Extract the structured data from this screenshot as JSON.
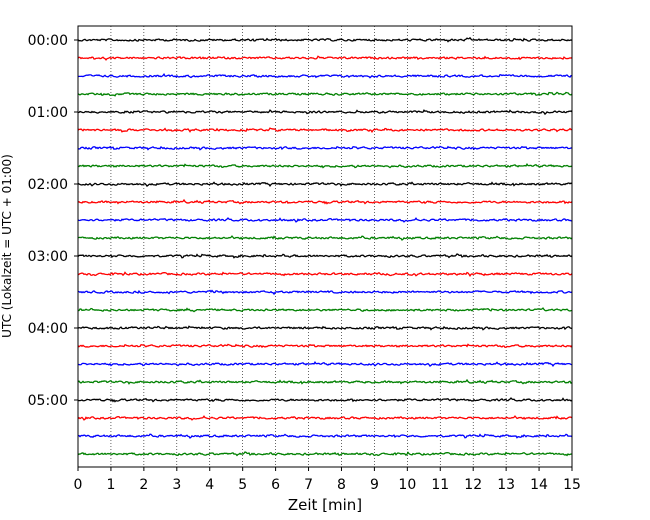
{
  "chart_data": {
    "type": "line",
    "title": "",
    "xlabel": "Zeit  [min]",
    "ylabel": "UTC (Lokalzeit = UTC + 01:00)",
    "xlim": [
      0,
      15
    ],
    "x_ticks": [
      "0",
      "1",
      "2",
      "3",
      "4",
      "5",
      "6",
      "7",
      "8",
      "9",
      "10",
      "11",
      "12",
      "13",
      "14",
      "15"
    ],
    "y_tick_labels": [
      "00:00",
      "01:00",
      "02:00",
      "03:00",
      "04:00",
      "05:00"
    ],
    "grid": "vertical dotted",
    "trace_interval_minutes": 15,
    "color_cycle": [
      "#000000",
      "#ff0000",
      "#0000ff",
      "#008000"
    ],
    "series": [
      {
        "start": "00:00",
        "color": "#000000"
      },
      {
        "start": "00:15",
        "color": "#ff0000"
      },
      {
        "start": "00:30",
        "color": "#0000ff"
      },
      {
        "start": "00:45",
        "color": "#008000"
      },
      {
        "start": "01:00",
        "color": "#000000"
      },
      {
        "start": "01:15",
        "color": "#ff0000"
      },
      {
        "start": "01:30",
        "color": "#0000ff"
      },
      {
        "start": "01:45",
        "color": "#008000"
      },
      {
        "start": "02:00",
        "color": "#000000"
      },
      {
        "start": "02:15",
        "color": "#ff0000"
      },
      {
        "start": "02:30",
        "color": "#0000ff"
      },
      {
        "start": "02:45",
        "color": "#008000"
      },
      {
        "start": "03:00",
        "color": "#000000"
      },
      {
        "start": "03:15",
        "color": "#ff0000"
      },
      {
        "start": "03:30",
        "color": "#0000ff"
      },
      {
        "start": "03:45",
        "color": "#008000"
      },
      {
        "start": "04:00",
        "color": "#000000"
      },
      {
        "start": "04:15",
        "color": "#ff0000"
      },
      {
        "start": "04:30",
        "color": "#0000ff"
      },
      {
        "start": "04:45",
        "color": "#008000"
      },
      {
        "start": "05:00",
        "color": "#000000"
      },
      {
        "start": "05:15",
        "color": "#ff0000"
      },
      {
        "start": "05:30",
        "color": "#0000ff"
      },
      {
        "start": "05:45",
        "color": "#008000"
      }
    ]
  }
}
